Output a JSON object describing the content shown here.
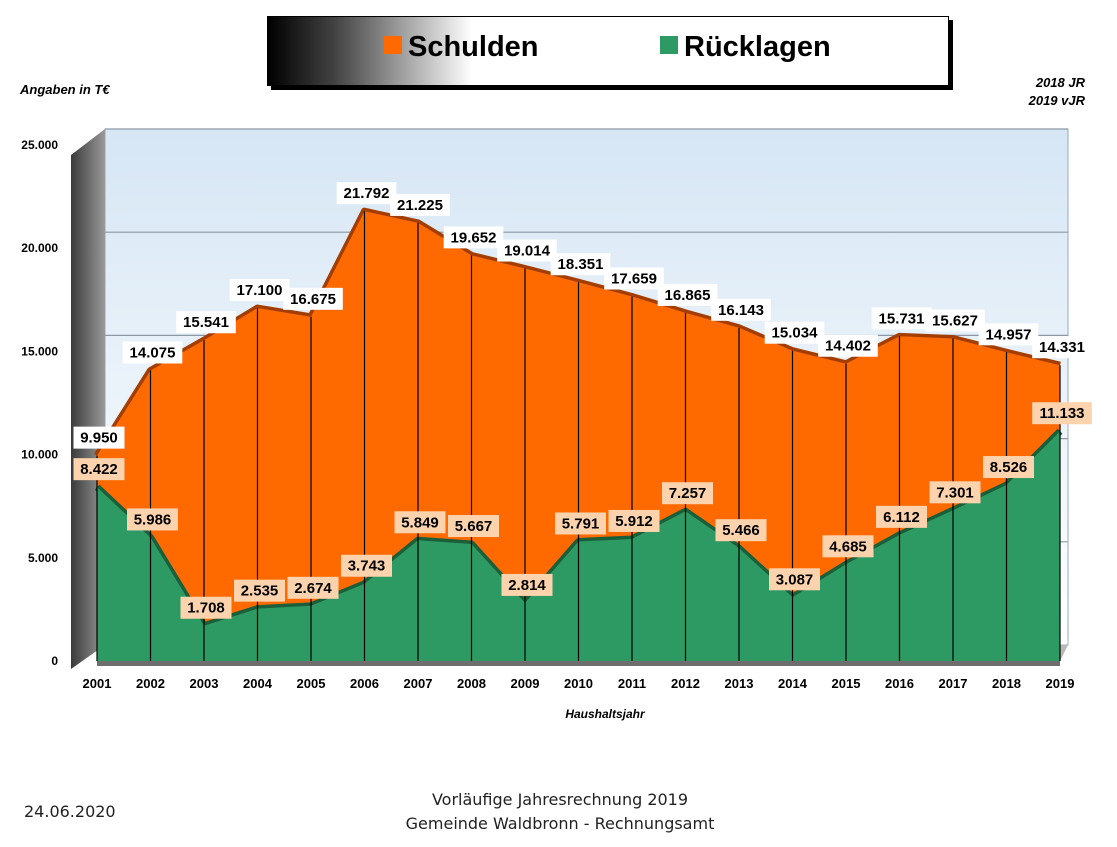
{
  "legend": {
    "debt_label": "Schulden",
    "reserve_label": "Rücklagen",
    "debt_color": "#ff6a00",
    "reserve_color": "#2e9a63"
  },
  "unit_note": "Angaben in T€",
  "corner_note": [
    "2018 JR",
    "2019 vJR"
  ],
  "footer": {
    "date": "24.06.2020",
    "line1": "Vorläufige Jahresrechnung 2019",
    "line2": "Gemeinde Waldbronn - Rechnungsamt"
  },
  "chart_data": {
    "type": "area",
    "x": [
      "2001",
      "2002",
      "2003",
      "2004",
      "2005",
      "2006",
      "2007",
      "2008",
      "2009",
      "2010",
      "2011",
      "2012",
      "2013",
      "2014",
      "2015",
      "2016",
      "2017",
      "2018",
      "2019"
    ],
    "series": [
      {
        "name": "Schulden",
        "values": [
          9950,
          14075,
          15541,
          17100,
          16675,
          21792,
          21225,
          19652,
          19014,
          18351,
          17659,
          16865,
          16143,
          15034,
          14402,
          15731,
          15627,
          14957,
          14331
        ],
        "labels": [
          "9.950",
          "14.075",
          "15.541",
          "17.100",
          "16.675",
          "21.792",
          "21.225",
          "19.652",
          "19.014",
          "18.351",
          "17.659",
          "16.865",
          "16.143",
          "15.034",
          "14.402",
          "15.731",
          "15.627",
          "14.957",
          "14.331"
        ]
      },
      {
        "name": "Rücklagen",
        "values": [
          8422,
          5986,
          1708,
          2535,
          2674,
          3743,
          5849,
          5667,
          2814,
          5791,
          5912,
          7257,
          5466,
          3087,
          4685,
          6112,
          7301,
          8526,
          11133
        ],
        "labels": [
          "8.422",
          "5.986",
          "1.708",
          "2.535",
          "2.674",
          "3.743",
          "5.849",
          "5.667",
          "2.814",
          "5.791",
          "5.912",
          "7.257",
          "5.466",
          "3.087",
          "4.685",
          "6.112",
          "7.301",
          "8.526",
          "11.133"
        ]
      }
    ],
    "y_ticks": [
      0,
      5000,
      10000,
      15000,
      20000,
      25000
    ],
    "y_tick_labels": [
      "0",
      "5.000",
      "10.000",
      "15.000",
      "20.000",
      "25.000"
    ],
    "ylim": [
      0,
      25000
    ],
    "xlabel": "Haushaltsjahr",
    "grid": true
  }
}
